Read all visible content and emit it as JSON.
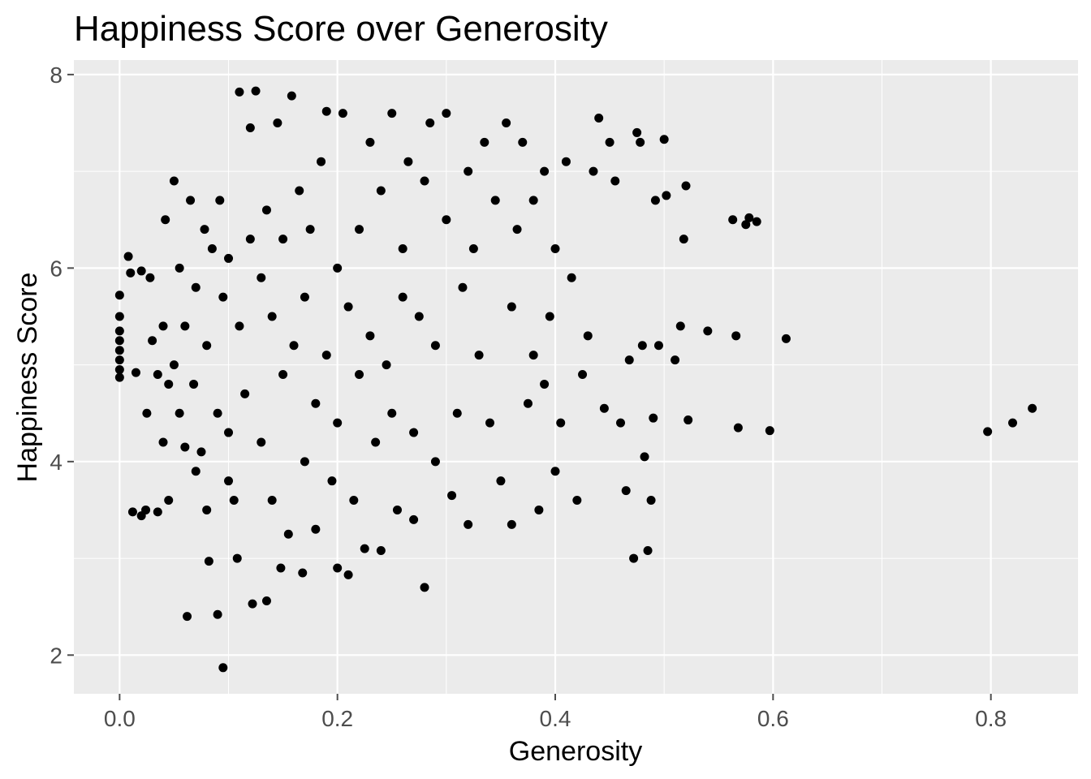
{
  "chart_data": {
    "type": "scatter",
    "title": "Happiness Score over Generosity",
    "xlabel": "Generosity",
    "ylabel": "Happiness Score",
    "xlim": [
      -0.042,
      0.88
    ],
    "ylim": [
      1.6,
      8.15
    ],
    "x_ticks": [
      0.0,
      0.2,
      0.4,
      0.6,
      0.8
    ],
    "x_tick_labels": [
      "0.0",
      "0.2",
      "0.4",
      "0.6",
      "0.8"
    ],
    "y_ticks": [
      2,
      4,
      6,
      8
    ],
    "y_tick_labels": [
      "2",
      "4",
      "6",
      "8"
    ],
    "grid": true,
    "legend": "none",
    "colors": {
      "panel": "#ebebeb",
      "grid": "#ffffff",
      "point": "#000000",
      "ticks": "#4d4d4d"
    },
    "points": [
      [
        0.0,
        5.72
      ],
      [
        0.0,
        5.5
      ],
      [
        0.0,
        5.35
      ],
      [
        0.0,
        5.25
      ],
      [
        0.0,
        5.15
      ],
      [
        0.0,
        5.05
      ],
      [
        0.0,
        4.95
      ],
      [
        0.0,
        4.87
      ],
      [
        0.008,
        6.12
      ],
      [
        0.01,
        5.95
      ],
      [
        0.012,
        3.48
      ],
      [
        0.015,
        4.92
      ],
      [
        0.02,
        5.97
      ],
      [
        0.02,
        3.44
      ],
      [
        0.024,
        3.5
      ],
      [
        0.025,
        4.5
      ],
      [
        0.028,
        5.9
      ],
      [
        0.03,
        5.25
      ],
      [
        0.035,
        3.48
      ],
      [
        0.035,
        4.9
      ],
      [
        0.04,
        4.2
      ],
      [
        0.04,
        5.4
      ],
      [
        0.042,
        6.5
      ],
      [
        0.045,
        3.6
      ],
      [
        0.045,
        4.8
      ],
      [
        0.05,
        6.9
      ],
      [
        0.05,
        5.0
      ],
      [
        0.055,
        4.5
      ],
      [
        0.055,
        6.0
      ],
      [
        0.06,
        4.15
      ],
      [
        0.06,
        5.4
      ],
      [
        0.062,
        2.4
      ],
      [
        0.065,
        6.7
      ],
      [
        0.068,
        4.8
      ],
      [
        0.07,
        3.9
      ],
      [
        0.07,
        5.8
      ],
      [
        0.075,
        4.1
      ],
      [
        0.078,
        6.4
      ],
      [
        0.08,
        3.5
      ],
      [
        0.08,
        5.2
      ],
      [
        0.082,
        2.97
      ],
      [
        0.085,
        6.2
      ],
      [
        0.09,
        4.5
      ],
      [
        0.09,
        2.42
      ],
      [
        0.092,
        6.7
      ],
      [
        0.095,
        1.87
      ],
      [
        0.095,
        5.7
      ],
      [
        0.1,
        3.8
      ],
      [
        0.1,
        4.3
      ],
      [
        0.1,
        6.1
      ],
      [
        0.105,
        3.6
      ],
      [
        0.108,
        3.0
      ],
      [
        0.11,
        7.82
      ],
      [
        0.11,
        5.4
      ],
      [
        0.115,
        4.7
      ],
      [
        0.12,
        6.3
      ],
      [
        0.12,
        7.45
      ],
      [
        0.122,
        2.53
      ],
      [
        0.125,
        7.83
      ],
      [
        0.13,
        5.9
      ],
      [
        0.13,
        4.2
      ],
      [
        0.135,
        6.6
      ],
      [
        0.135,
        2.56
      ],
      [
        0.14,
        3.6
      ],
      [
        0.14,
        5.5
      ],
      [
        0.145,
        7.5
      ],
      [
        0.148,
        2.9
      ],
      [
        0.15,
        4.9
      ],
      [
        0.15,
        6.3
      ],
      [
        0.155,
        3.25
      ],
      [
        0.158,
        7.78
      ],
      [
        0.16,
        5.2
      ],
      [
        0.165,
        6.8
      ],
      [
        0.168,
        2.85
      ],
      [
        0.17,
        4.0
      ],
      [
        0.17,
        5.7
      ],
      [
        0.175,
        6.4
      ],
      [
        0.18,
        3.3
      ],
      [
        0.18,
        4.6
      ],
      [
        0.185,
        7.1
      ],
      [
        0.19,
        5.1
      ],
      [
        0.19,
        7.62
      ],
      [
        0.195,
        3.8
      ],
      [
        0.2,
        6.0
      ],
      [
        0.2,
        2.9
      ],
      [
        0.2,
        4.4
      ],
      [
        0.205,
        7.6
      ],
      [
        0.21,
        5.6
      ],
      [
        0.21,
        2.83
      ],
      [
        0.215,
        3.6
      ],
      [
        0.22,
        4.9
      ],
      [
        0.22,
        6.4
      ],
      [
        0.225,
        3.1
      ],
      [
        0.23,
        5.3
      ],
      [
        0.23,
        7.3
      ],
      [
        0.235,
        4.2
      ],
      [
        0.24,
        6.8
      ],
      [
        0.24,
        3.08
      ],
      [
        0.245,
        5.0
      ],
      [
        0.25,
        7.6
      ],
      [
        0.25,
        4.5
      ],
      [
        0.255,
        3.5
      ],
      [
        0.26,
        6.2
      ],
      [
        0.26,
        5.7
      ],
      [
        0.265,
        7.1
      ],
      [
        0.27,
        4.3
      ],
      [
        0.27,
        3.4
      ],
      [
        0.275,
        5.5
      ],
      [
        0.28,
        6.9
      ],
      [
        0.28,
        2.7
      ],
      [
        0.285,
        7.5
      ],
      [
        0.29,
        4.0
      ],
      [
        0.29,
        5.2
      ],
      [
        0.3,
        6.5
      ],
      [
        0.3,
        7.6
      ],
      [
        0.305,
        3.65
      ],
      [
        0.31,
        4.5
      ],
      [
        0.315,
        5.8
      ],
      [
        0.32,
        7.0
      ],
      [
        0.32,
        3.35
      ],
      [
        0.325,
        6.2
      ],
      [
        0.33,
        5.1
      ],
      [
        0.335,
        7.3
      ],
      [
        0.34,
        4.4
      ],
      [
        0.345,
        6.7
      ],
      [
        0.35,
        3.8
      ],
      [
        0.355,
        7.5
      ],
      [
        0.36,
        5.6
      ],
      [
        0.36,
        3.35
      ],
      [
        0.365,
        6.4
      ],
      [
        0.37,
        7.3
      ],
      [
        0.375,
        4.6
      ],
      [
        0.38,
        5.1
      ],
      [
        0.38,
        6.7
      ],
      [
        0.385,
        3.5
      ],
      [
        0.39,
        7.0
      ],
      [
        0.39,
        4.8
      ],
      [
        0.395,
        5.5
      ],
      [
        0.4,
        6.2
      ],
      [
        0.4,
        3.9
      ],
      [
        0.405,
        4.4
      ],
      [
        0.41,
        7.1
      ],
      [
        0.415,
        5.9
      ],
      [
        0.42,
        3.6
      ],
      [
        0.425,
        4.9
      ],
      [
        0.43,
        5.3
      ],
      [
        0.435,
        7.0
      ],
      [
        0.44,
        7.55
      ],
      [
        0.445,
        4.55
      ],
      [
        0.45,
        7.3
      ],
      [
        0.455,
        6.9
      ],
      [
        0.46,
        4.4
      ],
      [
        0.465,
        3.7
      ],
      [
        0.468,
        5.05
      ],
      [
        0.472,
        3.0
      ],
      [
        0.475,
        7.4
      ],
      [
        0.478,
        7.3
      ],
      [
        0.48,
        5.2
      ],
      [
        0.482,
        4.05
      ],
      [
        0.485,
        3.08
      ],
      [
        0.488,
        3.6
      ],
      [
        0.49,
        4.45
      ],
      [
        0.492,
        6.7
      ],
      [
        0.495,
        5.2
      ],
      [
        0.5,
        7.33
      ],
      [
        0.502,
        6.75
      ],
      [
        0.51,
        5.05
      ],
      [
        0.515,
        5.4
      ],
      [
        0.518,
        6.3
      ],
      [
        0.52,
        6.85
      ],
      [
        0.522,
        4.43
      ],
      [
        0.54,
        5.35
      ],
      [
        0.563,
        6.5
      ],
      [
        0.566,
        5.3
      ],
      [
        0.568,
        4.35
      ],
      [
        0.575,
        6.45
      ],
      [
        0.578,
        6.52
      ],
      [
        0.585,
        6.48
      ],
      [
        0.597,
        4.32
      ],
      [
        0.612,
        5.27
      ],
      [
        0.797,
        4.31
      ],
      [
        0.82,
        4.4
      ],
      [
        0.838,
        4.55
      ]
    ]
  }
}
